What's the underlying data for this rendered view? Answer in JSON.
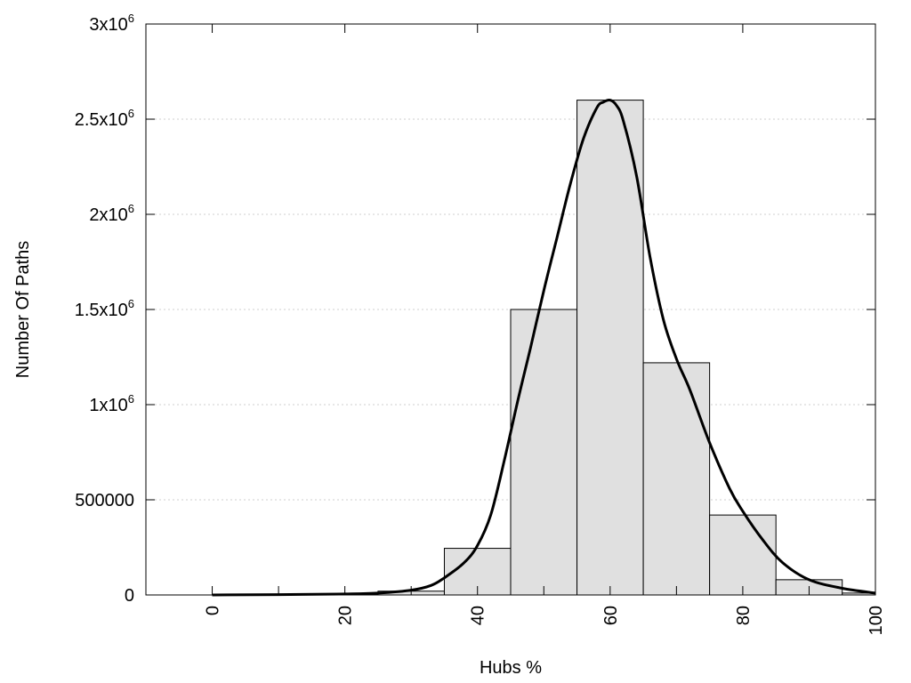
{
  "chart_data": {
    "type": "bar",
    "xlabel": "Hubs %",
    "ylabel": "Number Of Paths",
    "xlim": [
      -10,
      100
    ],
    "ylim": [
      0,
      3000000
    ],
    "grid": true,
    "x_ticks": [
      {
        "value": 0,
        "label": "0"
      },
      {
        "value": 20,
        "label": "20"
      },
      {
        "value": 40,
        "label": "40"
      },
      {
        "value": 60,
        "label": "60"
      },
      {
        "value": 80,
        "label": "80"
      },
      {
        "value": 100,
        "label": "100"
      }
    ],
    "y_ticks": [
      {
        "value": 0,
        "label": "0",
        "base": "",
        "exp": ""
      },
      {
        "value": 500000,
        "label": "500000",
        "base": "",
        "exp": ""
      },
      {
        "value": 1000000,
        "label": "",
        "base": "1x10",
        "exp": "6"
      },
      {
        "value": 1500000,
        "label": "",
        "base": "1.5x10",
        "exp": "6"
      },
      {
        "value": 2000000,
        "label": "",
        "base": "2x10",
        "exp": "6"
      },
      {
        "value": 2500000,
        "label": "",
        "base": "2.5x10",
        "exp": "6"
      },
      {
        "value": 3000000,
        "label": "",
        "base": "3x10",
        "exp": "6"
      }
    ],
    "bar_width": 10,
    "bars": [
      {
        "x": 0,
        "value": 0
      },
      {
        "x": 10,
        "value": 0
      },
      {
        "x": 20,
        "value": 3000
      },
      {
        "x": 30,
        "value": 20000
      },
      {
        "x": 40,
        "value": 245000
      },
      {
        "x": 50,
        "value": 1500000
      },
      {
        "x": 60,
        "value": 2600000
      },
      {
        "x": 70,
        "value": 1220000
      },
      {
        "x": 80,
        "value": 420000
      },
      {
        "x": 90,
        "value": 80000
      },
      {
        "x": 100,
        "value": 10000
      }
    ],
    "curve": {
      "x": [
        0,
        10,
        20,
        25,
        30,
        33,
        35,
        38,
        40,
        42,
        44,
        46,
        48,
        50,
        52,
        54,
        56,
        58,
        59,
        60,
        61,
        62,
        64,
        66,
        68,
        70,
        72,
        75,
        78,
        80,
        83,
        86,
        90,
        95,
        100
      ],
      "y": [
        0,
        2000,
        5000,
        10000,
        25000,
        50000,
        90000,
        170000,
        260000,
        420000,
        700000,
        1010000,
        1300000,
        1600000,
        1880000,
        2160000,
        2400000,
        2560000,
        2590000,
        2600000,
        2570000,
        2490000,
        2200000,
        1780000,
        1450000,
        1240000,
        1080000,
        800000,
        560000,
        440000,
        290000,
        170000,
        80000,
        35000,
        10000
      ]
    }
  }
}
